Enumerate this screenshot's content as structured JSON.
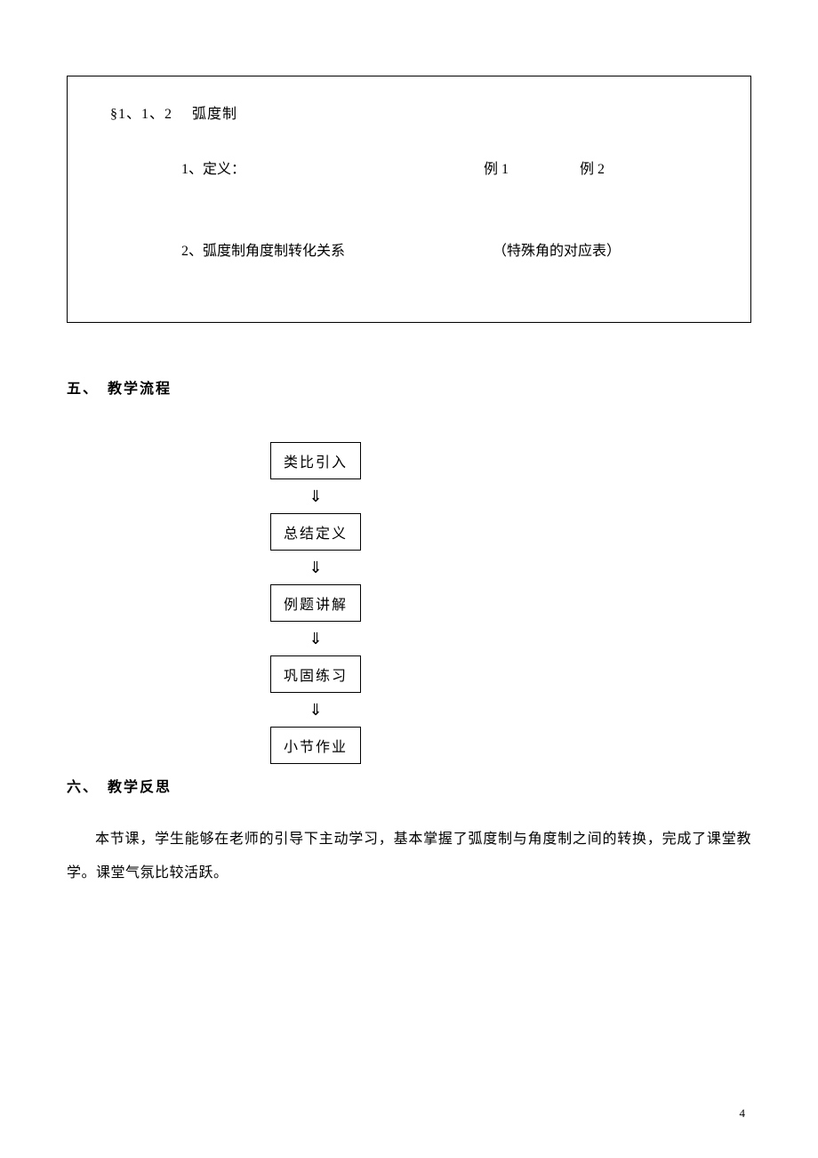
{
  "outline": {
    "title": "§1、1、2　 弧度制",
    "row1_left": "1、定义：",
    "row1_right_a": "例 1",
    "row1_right_b": "例 2",
    "row2_left": "2、弧度制角度制转化关系",
    "row2_right": "（特殊角的对应表）"
  },
  "section5": {
    "heading": "五、　教学流程",
    "steps": [
      "类比引入",
      "总结定义",
      "例题讲解",
      "巩固练习",
      "小节作业"
    ],
    "arrow": "⇓"
  },
  "section6": {
    "heading": "六、　教学反思",
    "paragraph": "本节课，学生能够在老师的引导下主动学习，基本掌握了弧度制与角度制之间的转换，完成了课堂教学。课堂气氛比较活跃。"
  },
  "page_number": "4",
  "colors": {
    "background": "#ffffff",
    "text": "#000000",
    "border": "#000000"
  }
}
